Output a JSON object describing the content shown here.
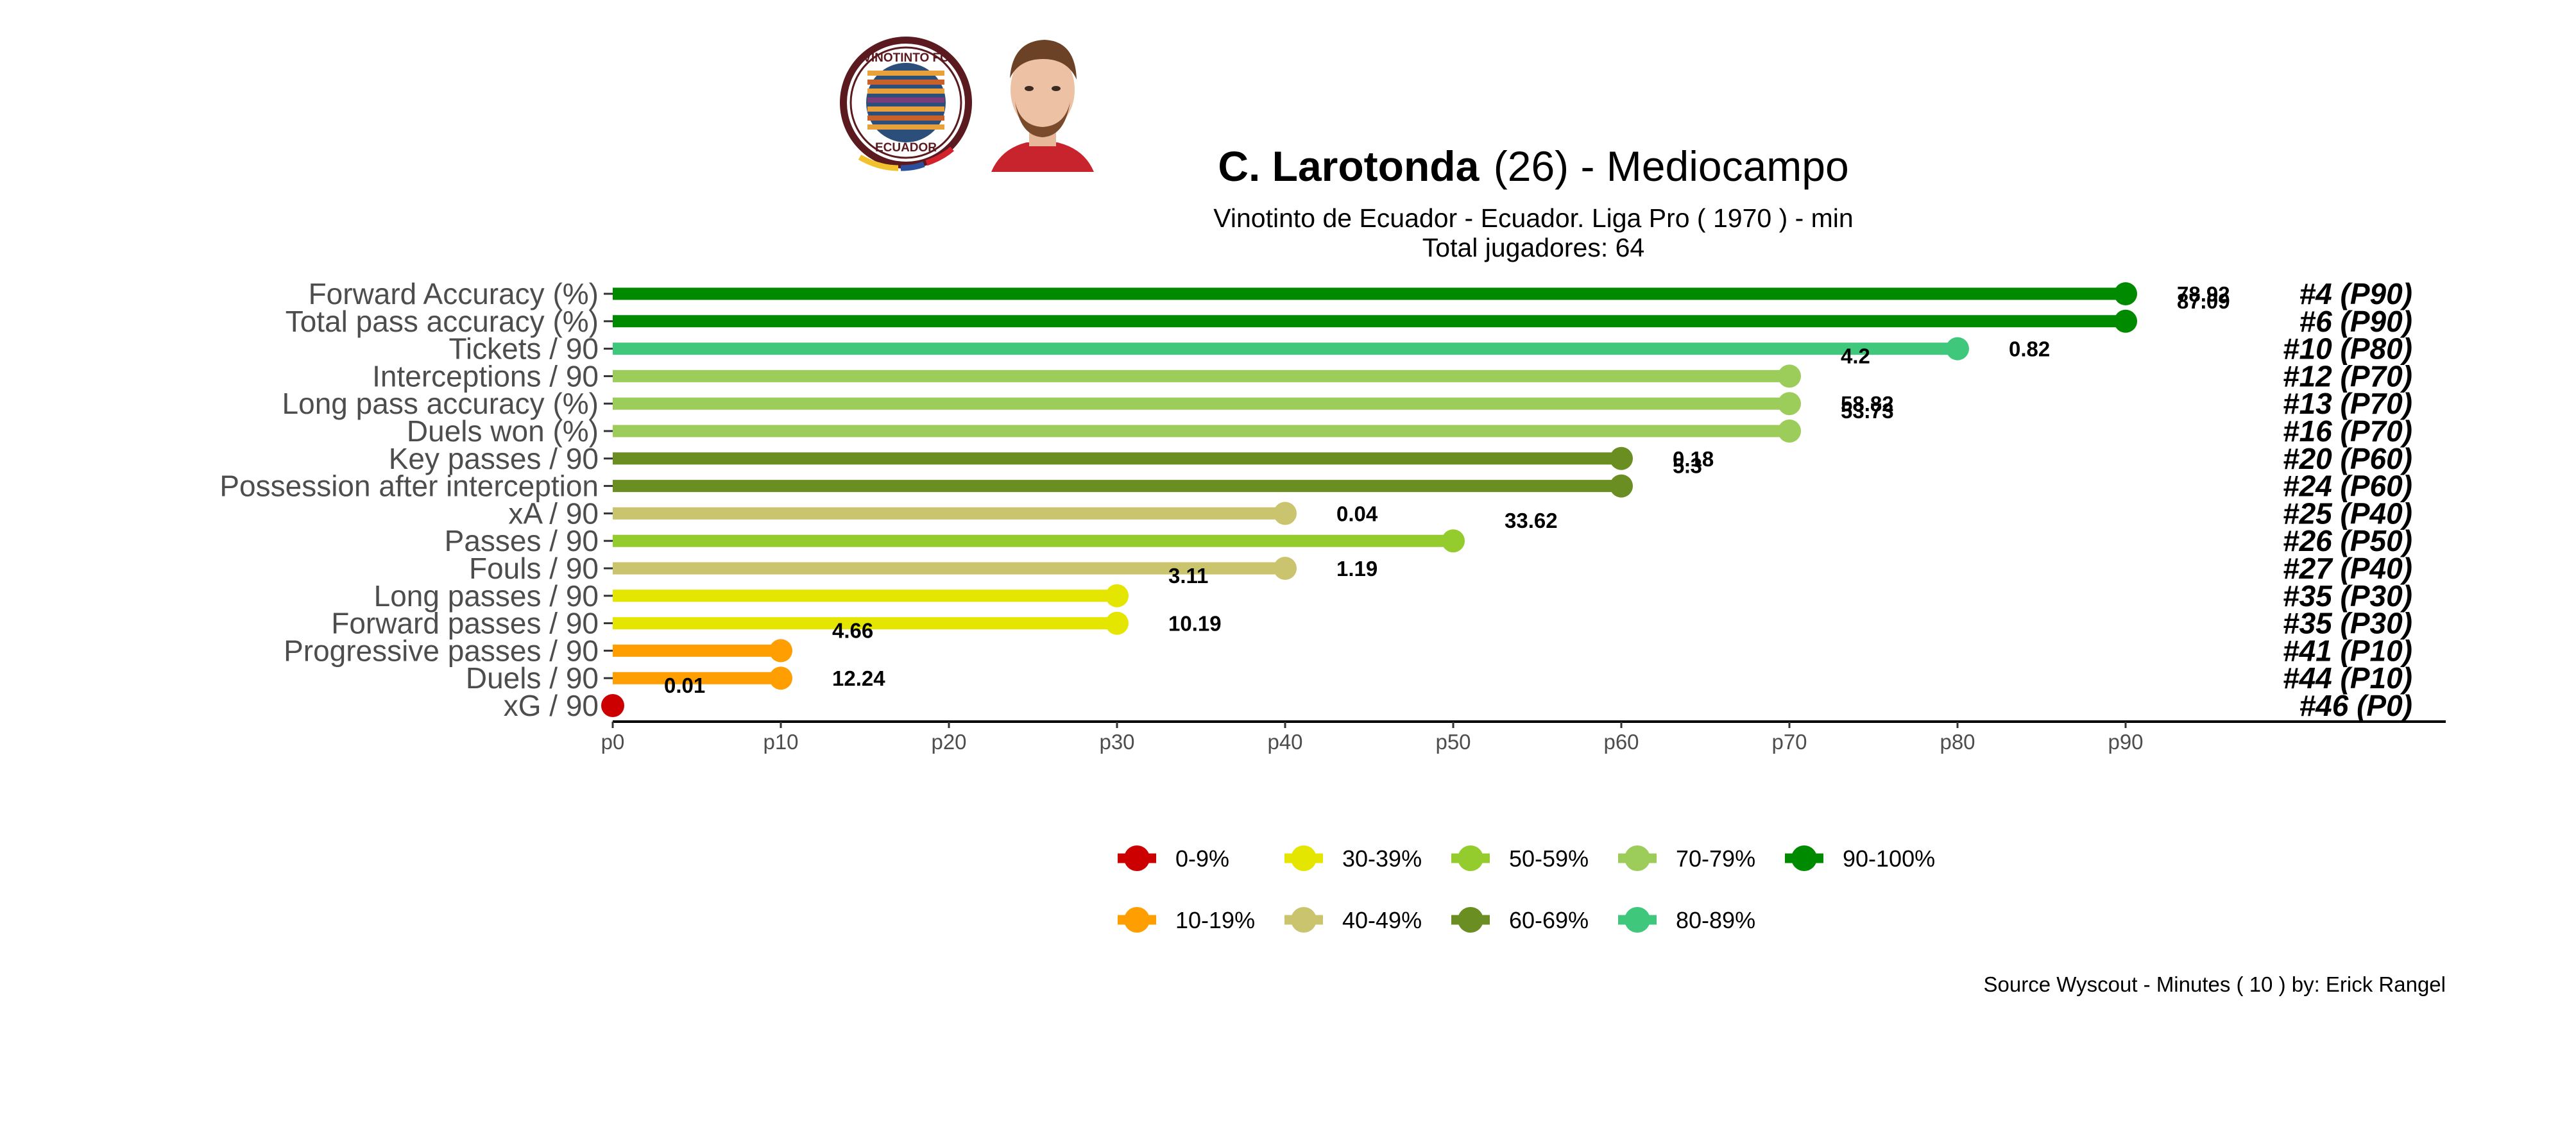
{
  "header": {
    "player_name": "C. Larotonda",
    "player_age_text": "(26) -  Mediocampo",
    "subtitle": "Vinotinto de Ecuador  -  Ecuador. Liga Pro  ( 1970 ) - min",
    "total_players": "Total jugadores:  64",
    "caption": "Source Wyscout - Minutes ( 10 ) by: Erick Rangel"
  },
  "club_badge": {
    "top_text": "VINOTINTO FC",
    "bottom_text": "ECUADOR",
    "ring_color": "#5b1a1f"
  },
  "chart_data": {
    "type": "lollipop",
    "xlim": [
      0,
      100
    ],
    "ticks": [
      "p0",
      "p10",
      "p20",
      "p30",
      "p40",
      "p50",
      "p60",
      "p70",
      "p80",
      "p90"
    ],
    "grid": false,
    "legend_position": "bottom",
    "legend": [
      {
        "label": "0-9%",
        "color": "#cc0000"
      },
      {
        "label": "10-19%",
        "color": "#ff9e00"
      },
      {
        "label": "30-39%",
        "color": "#e5e600"
      },
      {
        "label": "40-49%",
        "color": "#cbc46e"
      },
      {
        "label": "50-59%",
        "color": "#95cc2d"
      },
      {
        "label": "60-69%",
        "color": "#6b8e23"
      },
      {
        "label": "70-79%",
        "color": "#9ccc5a"
      },
      {
        "label": "80-89%",
        "color": "#3fc77c"
      },
      {
        "label": "90-100%",
        "color": "#008a00"
      }
    ],
    "rows": [
      {
        "metric": "Forward Accuracy (%)",
        "percentile": 90,
        "value": "78.92",
        "rank": "#4 (P90)",
        "color": "#008a00"
      },
      {
        "metric": "Total pass accuracy (%)",
        "percentile": 90,
        "value": "87.09",
        "rank": "#6 (P90)",
        "color": "#008a00"
      },
      {
        "metric": "Tickets / 90",
        "percentile": 80,
        "value": "0.82",
        "rank": "#10 (P80)",
        "color": "#3fc77c"
      },
      {
        "metric": "Interceptions / 90",
        "percentile": 70,
        "value": "4.2",
        "rank": "#12 (P70)",
        "color": "#9ccc5a"
      },
      {
        "metric": "Long pass accuracy (%)",
        "percentile": 70,
        "value": "58.82",
        "rank": "#13 (P70)",
        "color": "#9ccc5a"
      },
      {
        "metric": "Duels won (%)",
        "percentile": 70,
        "value": "53.73",
        "rank": "#16 (P70)",
        "color": "#9ccc5a"
      },
      {
        "metric": "Key passes / 90",
        "percentile": 60,
        "value": "0.18",
        "rank": "#20 (P60)",
        "color": "#6b8e23"
      },
      {
        "metric": "Possession after interception",
        "percentile": 60,
        "value": "5.3",
        "rank": "#24 (P60)",
        "color": "#6b8e23"
      },
      {
        "metric": "xA / 90",
        "percentile": 40,
        "value": "0.04",
        "rank": "#25 (P40)",
        "color": "#cbc46e"
      },
      {
        "metric": "Passes / 90",
        "percentile": 50,
        "value": "33.62",
        "rank": "#26 (P50)",
        "color": "#95cc2d"
      },
      {
        "metric": "Fouls / 90",
        "percentile": 40,
        "value": "1.19",
        "rank": "#27 (P40)",
        "color": "#cbc46e"
      },
      {
        "metric": "Long passes / 90",
        "percentile": 30,
        "value": "3.11",
        "rank": "#35 (P30)",
        "color": "#e5e600"
      },
      {
        "metric": "Forward passes / 90",
        "percentile": 30,
        "value": "10.19",
        "rank": "#35 (P30)",
        "color": "#e5e600"
      },
      {
        "metric": "Progressive passes / 90",
        "percentile": 10,
        "value": "4.66",
        "rank": "#41 (P10)",
        "color": "#ff9e00"
      },
      {
        "metric": "Duels / 90",
        "percentile": 10,
        "value": "12.24",
        "rank": "#44 (P10)",
        "color": "#ff9e00"
      },
      {
        "metric": "xG / 90",
        "percentile": 0,
        "value": "0.01",
        "rank": "#46 (P0)",
        "color": "#cc0000"
      }
    ]
  }
}
